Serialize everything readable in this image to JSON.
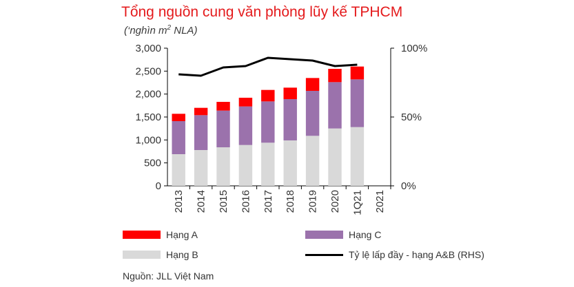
{
  "title": "Tổng nguồn cung văn phòng lũy kế TPHCM",
  "subtitle_prefix": "(‘nghìn m",
  "subtitle_sup": "2",
  "subtitle_suffix": " NLA)",
  "source": "Nguồn: JLL Việt Nam",
  "colors": {
    "hang_a": "#ff0000",
    "hang_b": "#d9d9d9",
    "hang_c": "#9b72ac",
    "line": "#000000",
    "axis": "#000000"
  },
  "legend": {
    "hang_a": "Hạng A",
    "hang_c": "Hạng C",
    "hang_b": "Hạng B",
    "occupancy": "Tỷ lệ lấp đầy - hạng A&B (RHS)"
  },
  "chart_data": {
    "type": "bar",
    "stacked": true,
    "categories": [
      "2013",
      "2014",
      "2015",
      "2016",
      "2017",
      "2018",
      "2019",
      "2020",
      "1Q21",
      "2021"
    ],
    "series": [
      {
        "name": "Hạng B",
        "key": "hang_b",
        "values": [
          690,
          780,
          840,
          890,
          940,
          990,
          1090,
          1250,
          1280,
          null
        ]
      },
      {
        "name": "Hạng C",
        "key": "hang_c",
        "values": [
          720,
          760,
          800,
          840,
          900,
          900,
          980,
          1010,
          1040,
          null
        ]
      },
      {
        "name": "Hạng A",
        "key": "hang_a",
        "values": [
          160,
          160,
          190,
          190,
          250,
          250,
          280,
          290,
          280,
          null
        ]
      }
    ],
    "line_series": {
      "name": "Tỷ lệ lấp đầy - hạng A&B (RHS)",
      "axis": "right",
      "values": [
        81,
        80,
        86,
        87,
        93,
        92,
        91,
        87,
        88,
        null
      ]
    },
    "y_left": {
      "min": 0,
      "max": 3000,
      "ticks": [
        "0",
        "500",
        "1,000",
        "1,500",
        "2,000",
        "2,500",
        "3,000"
      ]
    },
    "y_right": {
      "min": 0,
      "max": 100,
      "ticks": [
        "0%",
        "50%",
        "100%"
      ]
    },
    "xlabel": "",
    "ylabel": "‘nghìn m2 NLA"
  }
}
